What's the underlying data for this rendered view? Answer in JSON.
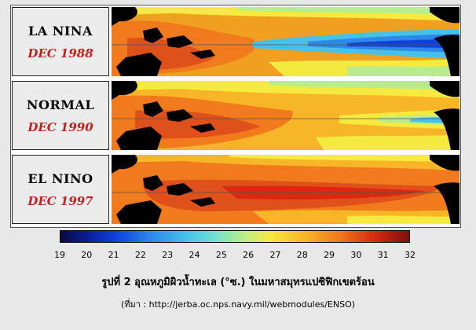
{
  "panels": [
    {
      "name": "LA NINA",
      "date": "DEC 1988",
      "state": "la-nina"
    },
    {
      "name": "NORMAL",
      "date": "DEC 1990",
      "state": "normal"
    },
    {
      "name": "EL NINO",
      "date": "DEC 1997",
      "state": "el-nino"
    }
  ],
  "colorbar": {
    "ticks": [
      "19",
      "20",
      "21",
      "22",
      "23",
      "24",
      "25",
      "26",
      "27",
      "28",
      "29",
      "30",
      "31",
      "32"
    ],
    "colors": [
      "#0a0a3a",
      "#0a1e9a",
      "#1040e0",
      "#2e88ea",
      "#46c2ea",
      "#6fe0d2",
      "#b8ec8e",
      "#f6ea40",
      "#f6b628",
      "#f07a1c",
      "#d82a10",
      "#7a1010"
    ]
  },
  "caption": "รูปที่ 2 อุณหภูมิผิวน้ำทะเล (°ซ.) ในมหาสมุทรแปซิฟิกเขตร้อน",
  "source": "(ที่มา : http://jerba.oc.nps.navy.mil/webmodules/ENSO)"
}
